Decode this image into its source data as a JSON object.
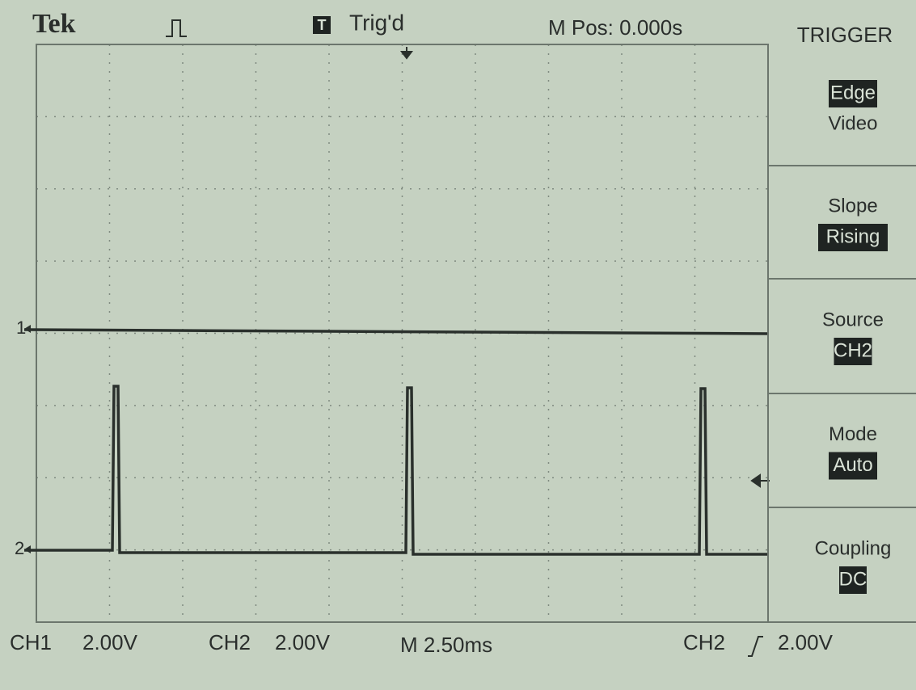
{
  "header": {
    "brand": "Tek",
    "trigger_badge": "T",
    "trigger_status": "Trig'd",
    "position": "M Pos: 0.000s"
  },
  "markers": {
    "ch1": "1",
    "ch2": "2"
  },
  "menu": {
    "title": "TRIGGER",
    "items": [
      {
        "lines": [
          "Edge",
          "Video"
        ]
      },
      {
        "lines": [
          "Slope",
          "Rising"
        ]
      },
      {
        "lines": [
          "Source",
          "CH2"
        ]
      },
      {
        "lines": [
          "Mode",
          "Auto"
        ]
      },
      {
        "lines": [
          "Coupling",
          "DC"
        ]
      }
    ]
  },
  "footer": {
    "ch1_label": "CH1",
    "ch1_scale": "2.00V",
    "ch2_label": "CH2",
    "ch2_scale": "2.00V",
    "timebase": "M 2.50ms",
    "trigger_source": "CH2",
    "trigger_level": "2.00V"
  }
}
